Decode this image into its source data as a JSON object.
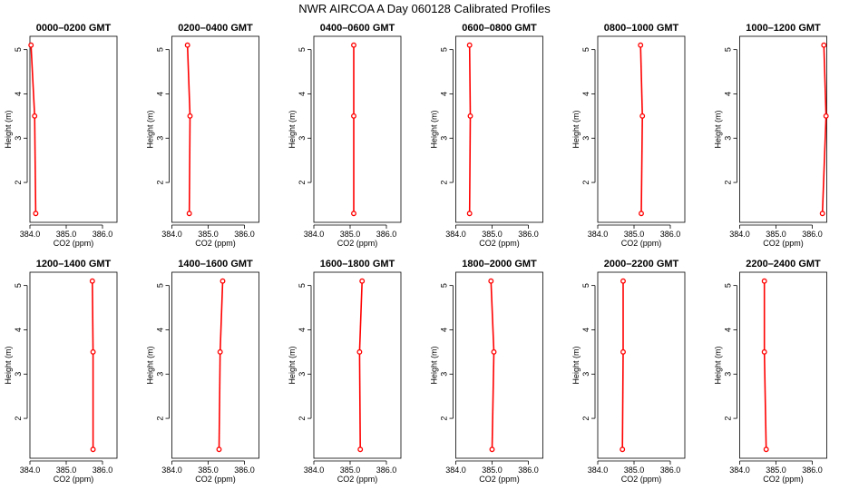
{
  "page": {
    "title": "NWR AIRCOA A  Day 060128  Calibrated Profiles"
  },
  "colors": {
    "series": "#ff0000",
    "axes": "#000000",
    "background": "#ffffff"
  },
  "chart_data": [
    {
      "type": "line",
      "title": "0000–0200 GMT",
      "xlabel": "CO2 (ppm)",
      "ylabel": "Height (m)",
      "xlim": [
        384.0,
        386.4
      ],
      "ylim": [
        1.1,
        5.3
      ],
      "xticks": [
        "384.0",
        "385.0",
        "386.0"
      ],
      "yticks": [
        "2",
        "3",
        "4",
        "5"
      ],
      "series": [
        {
          "name": "profile",
          "x": [
            384.16,
            384.13,
            384.03
          ],
          "y": [
            1.3,
            3.5,
            5.1
          ]
        }
      ]
    },
    {
      "type": "line",
      "title": "0200–0400 GMT",
      "xlabel": "CO2 (ppm)",
      "ylabel": "Height (m)",
      "xlim": [
        384.0,
        386.4
      ],
      "ylim": [
        1.1,
        5.3
      ],
      "xticks": [
        "384.0",
        "385.0",
        "386.0"
      ],
      "yticks": [
        "2",
        "3",
        "4",
        "5"
      ],
      "series": [
        {
          "name": "profile",
          "x": [
            384.48,
            384.5,
            384.43
          ],
          "y": [
            1.3,
            3.5,
            5.1
          ]
        }
      ]
    },
    {
      "type": "line",
      "title": "0400–0600 GMT",
      "xlabel": "CO2 (ppm)",
      "ylabel": "Height (m)",
      "xlim": [
        384.0,
        386.4
      ],
      "ylim": [
        1.1,
        5.3
      ],
      "xticks": [
        "384.0",
        "385.0",
        "386.0"
      ],
      "yticks": [
        "2",
        "3",
        "4",
        "5"
      ],
      "series": [
        {
          "name": "profile",
          "x": [
            385.1,
            385.1,
            385.1
          ],
          "y": [
            1.3,
            3.5,
            5.1
          ]
        }
      ]
    },
    {
      "type": "line",
      "title": "0600–0800 GMT",
      "xlabel": "CO2 (ppm)",
      "ylabel": "Height (m)",
      "xlim": [
        384.0,
        386.4
      ],
      "ylim": [
        1.1,
        5.3
      ],
      "xticks": [
        "384.0",
        "385.0",
        "386.0"
      ],
      "yticks": [
        "2",
        "3",
        "4",
        "5"
      ],
      "series": [
        {
          "name": "profile",
          "x": [
            384.38,
            384.4,
            384.38
          ],
          "y": [
            1.3,
            3.5,
            5.1
          ]
        }
      ]
    },
    {
      "type": "line",
      "title": "0800–1000 GMT",
      "xlabel": "CO2 (ppm)",
      "ylabel": "Height (m)",
      "xlim": [
        384.0,
        386.4
      ],
      "ylim": [
        1.1,
        5.3
      ],
      "xticks": [
        "384.0",
        "385.0",
        "386.0"
      ],
      "yticks": [
        "2",
        "3",
        "4",
        "5"
      ],
      "series": [
        {
          "name": "profile",
          "x": [
            385.2,
            385.23,
            385.18
          ],
          "y": [
            1.3,
            3.5,
            5.1
          ]
        }
      ]
    },
    {
      "type": "line",
      "title": "1000–1200 GMT",
      "xlabel": "CO2 (ppm)",
      "ylabel": "Height (m)",
      "xlim": [
        384.0,
        386.4
      ],
      "ylim": [
        1.1,
        5.3
      ],
      "xticks": [
        "384.0",
        "385.0",
        "386.0"
      ],
      "yticks": [
        "2",
        "3",
        "4",
        "5"
      ],
      "series": [
        {
          "name": "profile",
          "x": [
            386.28,
            386.38,
            386.32
          ],
          "y": [
            1.3,
            3.5,
            5.1
          ]
        }
      ]
    },
    {
      "type": "line",
      "title": "1200–1400 GMT",
      "xlabel": "CO2 (ppm)",
      "ylabel": "Height (m)",
      "xlim": [
        384.0,
        386.4
      ],
      "ylim": [
        1.1,
        5.3
      ],
      "xticks": [
        "384.0",
        "385.0",
        "386.0"
      ],
      "yticks": [
        "2",
        "3",
        "4",
        "5"
      ],
      "series": [
        {
          "name": "profile",
          "x": [
            385.74,
            385.74,
            385.72
          ],
          "y": [
            1.3,
            3.5,
            5.1
          ]
        }
      ]
    },
    {
      "type": "line",
      "title": "1400–1600 GMT",
      "xlabel": "CO2 (ppm)",
      "ylabel": "Height (m)",
      "xlim": [
        384.0,
        386.4
      ],
      "ylim": [
        1.1,
        5.3
      ],
      "xticks": [
        "384.0",
        "385.0",
        "386.0"
      ],
      "yticks": [
        "2",
        "3",
        "4",
        "5"
      ],
      "series": [
        {
          "name": "profile",
          "x": [
            385.3,
            385.33,
            385.4
          ],
          "y": [
            1.3,
            3.5,
            5.1
          ]
        }
      ]
    },
    {
      "type": "line",
      "title": "1600–1800 GMT",
      "xlabel": "CO2 (ppm)",
      "ylabel": "Height (m)",
      "xlim": [
        384.0,
        386.4
      ],
      "ylim": [
        1.1,
        5.3
      ],
      "xticks": [
        "384.0",
        "385.0",
        "386.0"
      ],
      "yticks": [
        "2",
        "3",
        "4",
        "5"
      ],
      "series": [
        {
          "name": "profile",
          "x": [
            385.28,
            385.26,
            385.33
          ],
          "y": [
            1.3,
            3.5,
            5.1
          ]
        }
      ]
    },
    {
      "type": "line",
      "title": "1800–2000 GMT",
      "xlabel": "CO2 (ppm)",
      "ylabel": "Height (m)",
      "xlim": [
        384.0,
        386.4
      ],
      "ylim": [
        1.1,
        5.3
      ],
      "xticks": [
        "384.0",
        "385.0",
        "386.0"
      ],
      "yticks": [
        "2",
        "3",
        "4",
        "5"
      ],
      "series": [
        {
          "name": "profile",
          "x": [
            385.0,
            385.05,
            384.97
          ],
          "y": [
            1.3,
            3.5,
            5.1
          ]
        }
      ]
    },
    {
      "type": "line",
      "title": "2000–2200 GMT",
      "xlabel": "CO2 (ppm)",
      "ylabel": "Height (m)",
      "xlim": [
        384.0,
        386.4
      ],
      "ylim": [
        1.1,
        5.3
      ],
      "xticks": [
        "384.0",
        "385.0",
        "386.0"
      ],
      "yticks": [
        "2",
        "3",
        "4",
        "5"
      ],
      "series": [
        {
          "name": "profile",
          "x": [
            384.68,
            384.7,
            384.7
          ],
          "y": [
            1.3,
            3.5,
            5.1
          ]
        }
      ]
    },
    {
      "type": "line",
      "title": "2200–2400 GMT",
      "xlabel": "CO2 (ppm)",
      "ylabel": "Height (m)",
      "xlim": [
        384.0,
        386.4
      ],
      "ylim": [
        1.1,
        5.3
      ],
      "xticks": [
        "384.0",
        "385.0",
        "386.0"
      ],
      "yticks": [
        "2",
        "3",
        "4",
        "5"
      ],
      "series": [
        {
          "name": "profile",
          "x": [
            384.73,
            384.68,
            384.68
          ],
          "y": [
            1.3,
            3.5,
            5.1
          ]
        }
      ]
    }
  ]
}
